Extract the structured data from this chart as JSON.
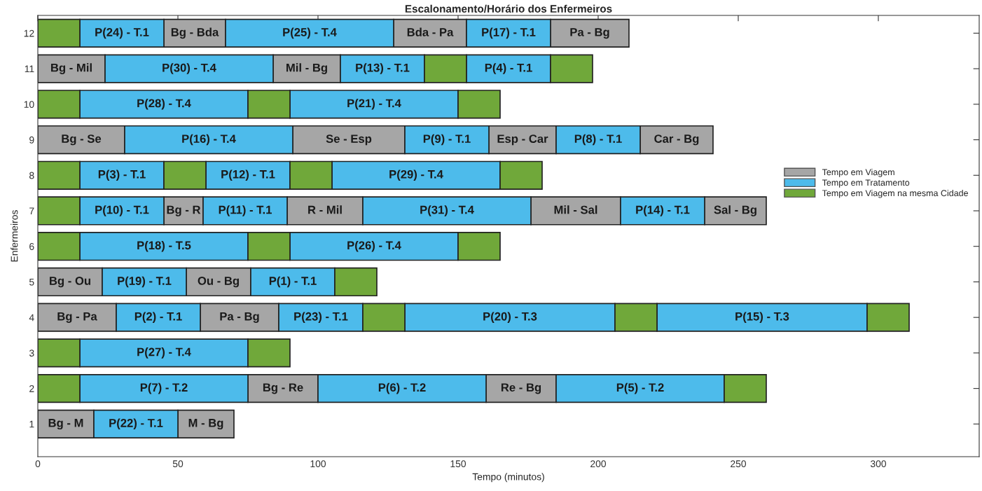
{
  "chart_data": {
    "type": "bar",
    "orientation": "horizontal",
    "title": "Escalonamento/Horário dos Enfermeiros",
    "xlabel": "Tempo (minutos)",
    "ylabel": "Enfermeiros",
    "categories": [
      "12",
      "11",
      "10",
      "9",
      "8",
      "7",
      "6",
      "5",
      "4",
      "3",
      "2",
      "1"
    ],
    "xlim": [
      0,
      336
    ],
    "xticks": [
      0,
      50,
      100,
      150,
      200,
      250,
      300
    ],
    "grid": false,
    "legend": "right",
    "series": [
      {
        "name": "Tempo em Viagem",
        "color": "#a6a6a6",
        "base": [
          45,
          0,
          null,
          0,
          null,
          45,
          null,
          0,
          0,
          null,
          75,
          0
        ],
        "values": [
          22,
          24,
          null,
          31,
          null,
          14,
          null,
          23,
          28,
          null,
          25,
          20
        ],
        "value_labels": [
          "Bg - Bda",
          "Bg - Mil",
          null,
          "Bg - Se",
          null,
          "Bg - R",
          null,
          "Bg - Ou",
          "Bg - Pa",
          null,
          "Bg - Re",
          "Bg - M"
        ]
      },
      {
        "color": "#a6a6a6",
        "base": [
          127,
          84,
          null,
          91,
          null,
          89,
          null,
          53,
          58,
          null,
          160,
          50
        ],
        "values": [
          26,
          24,
          null,
          40,
          null,
          27,
          null,
          23,
          28,
          null,
          25,
          20
        ],
        "value_labels": [
          "Bda - Pa",
          "Mil - Bg",
          null,
          "Se - Esp",
          null,
          "R - Mil",
          null,
          "Ou - Bg",
          "Pa - Bg",
          null,
          "Re - Bg",
          "M - Bg"
        ]
      },
      {
        "color": "#a6a6a6",
        "base": [
          183,
          null,
          null,
          161,
          null,
          176,
          null,
          null,
          null,
          null,
          null,
          null
        ],
        "values": [
          28,
          null,
          null,
          24,
          null,
          32,
          null,
          null,
          null,
          null,
          null,
          null
        ],
        "value_labels": [
          "Pa - Bg",
          null,
          null,
          "Esp - Car",
          null,
          "Mil - Sal",
          null,
          null,
          null,
          null,
          null,
          null
        ]
      },
      {
        "color": "#a6a6a6",
        "base": [
          null,
          null,
          null,
          215,
          null,
          238,
          null,
          null,
          null,
          null,
          null,
          null
        ],
        "values": [
          null,
          null,
          null,
          26,
          null,
          22,
          null,
          null,
          null,
          null,
          null,
          null
        ],
        "value_labels": [
          null,
          null,
          null,
          "Car - Bg",
          null,
          "Sal - Bg",
          null,
          null,
          null,
          null,
          null,
          null
        ]
      },
      {
        "name": "Tempo em Tratamento",
        "color": "#4dbbeb",
        "base": [
          15,
          24,
          15,
          31,
          15,
          15,
          15,
          23,
          28,
          15,
          15,
          20
        ],
        "values": [
          30,
          60,
          60,
          60,
          30,
          30,
          60,
          30,
          30,
          60,
          60,
          30
        ],
        "value_labels": [
          "P(24) - T.1",
          "P(30) - T.4",
          "P(28) - T.4",
          "P(16) - T.4",
          "P(3) - T.1",
          "P(10) - T.1",
          "P(18) - T.5",
          "P(19) - T.1",
          "P(2) - T.1",
          "P(27) - T.4",
          "P(7) - T.2",
          "P(22) - T.1"
        ]
      },
      {
        "color": "#4dbbeb",
        "base": [
          67,
          108,
          90,
          131,
          60,
          59,
          90,
          76,
          86,
          null,
          100,
          null
        ],
        "values": [
          60,
          30,
          60,
          30,
          30,
          30,
          60,
          30,
          30,
          null,
          60,
          null
        ],
        "value_labels": [
          "P(25) - T.4",
          "P(13) - T.1",
          "P(21) - T.4",
          "P(9) - T.1",
          "P(12) - T.1",
          "P(11) - T.1",
          "P(26) - T.4",
          "P(1) - T.1",
          "P(23) - T.1",
          null,
          "P(6) - T.2",
          null
        ]
      },
      {
        "color": "#4dbbeb",
        "base": [
          153,
          153,
          null,
          185,
          105,
          116,
          null,
          null,
          131,
          null,
          185,
          null
        ],
        "values": [
          30,
          30,
          null,
          30,
          60,
          60,
          null,
          null,
          75,
          null,
          60,
          null
        ],
        "value_labels": [
          "P(17) - T.1",
          "P(4) - T.1",
          null,
          "P(8) - T.1",
          "P(29) - T.4",
          "P(31) - T.4",
          null,
          null,
          "P(20) - T.3",
          null,
          "P(5) - T.2",
          null
        ]
      },
      {
        "color": "#4dbbeb",
        "base": [
          null,
          null,
          null,
          null,
          null,
          208,
          null,
          null,
          221,
          null,
          null,
          null
        ],
        "values": [
          null,
          null,
          null,
          null,
          null,
          30,
          null,
          null,
          75,
          null,
          null,
          null
        ],
        "value_labels": [
          null,
          null,
          null,
          null,
          null,
          "P(14) - T.1",
          null,
          null,
          "P(15) - T.3",
          null,
          null,
          null
        ]
      },
      {
        "name": "Tempo em Viagem na mesma Cidade",
        "color": "#70a83a",
        "base": [
          0,
          138,
          0,
          null,
          0,
          0,
          0,
          106,
          116,
          0,
          0,
          null
        ],
        "values": [
          15,
          15,
          15,
          null,
          15,
          15,
          15,
          15,
          15,
          15,
          15,
          null
        ]
      },
      {
        "color": "#70a83a",
        "base": [
          null,
          183,
          75,
          null,
          45,
          null,
          75,
          null,
          206,
          75,
          245,
          null
        ],
        "values": [
          null,
          15,
          15,
          null,
          15,
          null,
          15,
          null,
          15,
          15,
          15,
          null
        ]
      },
      {
        "color": "#70a83a",
        "base": [
          null,
          null,
          150,
          null,
          90,
          null,
          150,
          null,
          296,
          null,
          null,
          null
        ],
        "values": [
          null,
          null,
          15,
          null,
          15,
          null,
          15,
          null,
          15,
          null,
          null,
          null
        ]
      },
      {
        "color": "#70a83a",
        "base": [
          null,
          null,
          null,
          null,
          165,
          null,
          null,
          null,
          null,
          null,
          null,
          null
        ],
        "values": [
          null,
          null,
          null,
          null,
          15,
          null,
          null,
          null,
          null,
          null,
          null,
          null
        ]
      }
    ]
  }
}
